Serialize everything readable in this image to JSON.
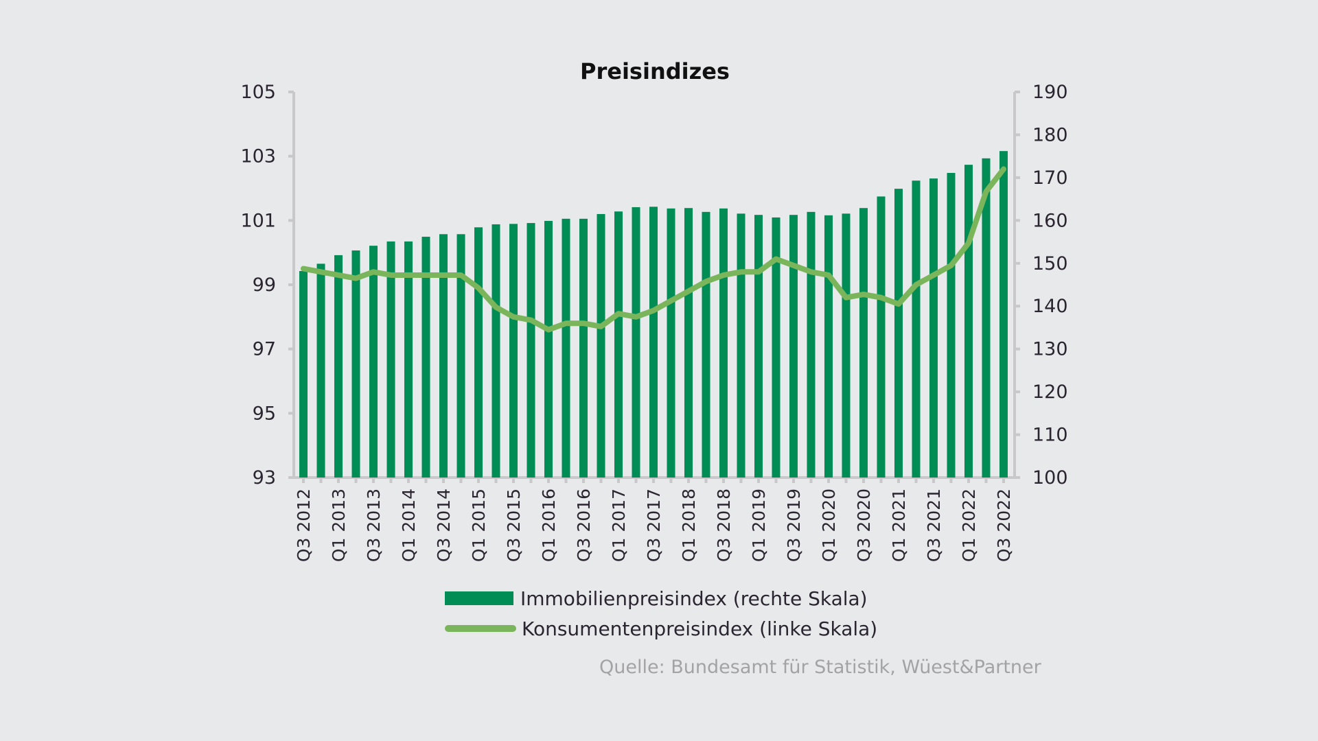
{
  "chart_data": {
    "type": "bar",
    "title": "Preisindizes",
    "categories": [
      "Q3 2012",
      "Q4 2012",
      "Q1 2013",
      "Q2 2013",
      "Q3 2013",
      "Q4 2013",
      "Q1 2014",
      "Q2 2014",
      "Q3 2014",
      "Q4 2014",
      "Q1 2015",
      "Q2 2015",
      "Q3 2015",
      "Q4 2015",
      "Q1 2016",
      "Q2 2016",
      "Q3 2016",
      "Q4 2016",
      "Q1 2017",
      "Q2 2017",
      "Q3 2017",
      "Q4 2017",
      "Q1 2018",
      "Q2 2018",
      "Q3 2018",
      "Q4 2018",
      "Q1 2019",
      "Q2 2019",
      "Q3 2019",
      "Q4 2019",
      "Q1 2020",
      "Q2 2020",
      "Q3 2020",
      "Q4 2020",
      "Q1 2021",
      "Q2 2021",
      "Q3 2021",
      "Q4 2021",
      "Q1 2022",
      "Q2 2022",
      "Q3 2022"
    ],
    "x_tick_labels": [
      "Q3 2012",
      "Q1 2013",
      "Q3 2013",
      "Q1 2014",
      "Q3 2014",
      "Q1 2015",
      "Q3 2015",
      "Q1 2016",
      "Q3 2016",
      "Q1 2017",
      "Q3 2017",
      "Q1 2018",
      "Q3 2018",
      "Q1 2019",
      "Q3 2019",
      "Q1 2020",
      "Q3 2020",
      "Q1 2021",
      "Q3 2021",
      "Q1 2022",
      "Q3 2022"
    ],
    "series": [
      {
        "name": "Immobilienpreisindex (rechte Skala)",
        "type": "bar",
        "axis": "right",
        "color": "#008c55",
        "values": [
          148.2,
          149.9,
          151.9,
          153.0,
          154.1,
          155.1,
          155.1,
          156.2,
          156.8,
          156.8,
          158.4,
          159.1,
          159.2,
          159.4,
          159.9,
          160.4,
          160.4,
          161.5,
          162.1,
          163.1,
          163.2,
          162.8,
          162.9,
          162.0,
          162.8,
          161.6,
          161.3,
          160.7,
          161.3,
          162.0,
          161.2,
          161.6,
          162.9,
          165.6,
          167.4,
          169.3,
          169.8,
          171.1,
          173.0,
          174.5,
          176.2
        ]
      },
      {
        "name": "Konsumentenpreisindex (linke Skala)",
        "type": "line",
        "axis": "left",
        "color": "#7ab55c",
        "values": [
          99.5,
          99.4,
          99.3,
          99.2,
          99.4,
          99.3,
          99.3,
          99.3,
          99.3,
          99.3,
          98.9,
          98.3,
          98.0,
          97.9,
          97.6,
          97.8,
          97.8,
          97.7,
          98.1,
          98.0,
          98.2,
          98.5,
          98.8,
          99.1,
          99.3,
          99.4,
          99.4,
          99.8,
          99.6,
          99.4,
          99.3,
          98.6,
          98.7,
          98.6,
          98.4,
          99.0,
          99.3,
          99.6,
          100.3,
          101.9,
          102.6
        ]
      }
    ],
    "y_left": {
      "min": 93,
      "max": 105,
      "ticks": [
        93,
        95,
        97,
        99,
        101,
        103,
        105
      ]
    },
    "y_right": {
      "min": 100,
      "max": 190,
      "ticks": [
        100,
        110,
        120,
        130,
        140,
        150,
        160,
        170,
        180,
        190
      ]
    },
    "xlabel": "",
    "ylabel": "",
    "grid": false,
    "legend_position": "bottom-center"
  },
  "legend": {
    "bar_label": "Immobilienpreisindex (rechte Skala)",
    "line_label": "Konsumentenpreisindex (linke Skala)"
  },
  "source": "Quelle: Bundesamt für Statistik, Wüest&Partner"
}
